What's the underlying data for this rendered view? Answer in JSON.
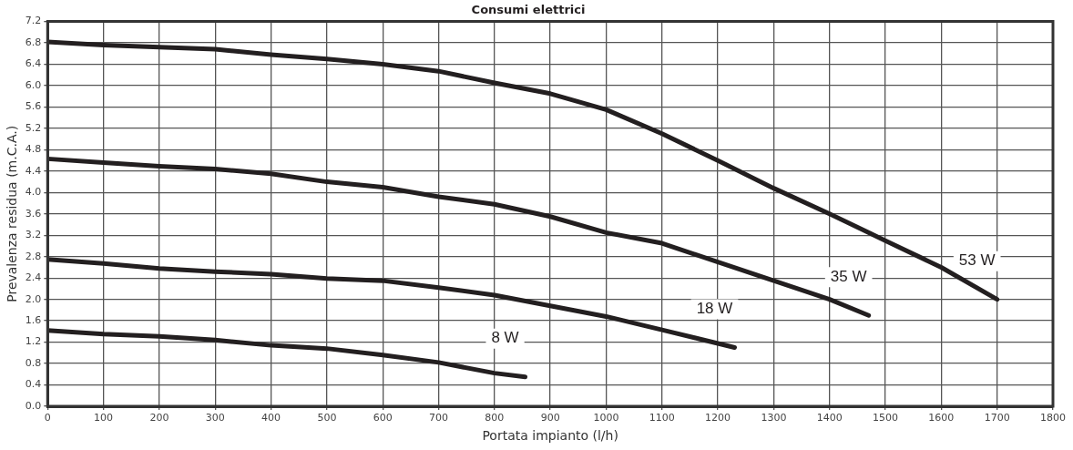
{
  "chart_data": {
    "type": "line",
    "title": "Consumi elettrici",
    "xlabel": "Portata impianto (l/h)",
    "ylabel": "Prevalenza residua (m.C.A.)",
    "xlim": [
      0,
      1800
    ],
    "xticks": [
      0,
      100,
      200,
      300,
      400,
      500,
      600,
      700,
      800,
      900,
      1000,
      1100,
      1200,
      1300,
      1400,
      1500,
      1600,
      1700,
      1800
    ],
    "ylim": [
      0,
      7.2
    ],
    "yticks": [
      {
        "value": 0,
        "label": "0.0"
      },
      {
        "value": 0.4,
        "label": "0.4"
      },
      {
        "value": 0.8,
        "label": "0.8"
      },
      {
        "value": 1.2,
        "label": "1.2"
      },
      {
        "value": 1.6,
        "label": "1.6"
      },
      {
        "value": 2,
        "label": "2.0"
      },
      {
        "value": 2.4,
        "label": "2.4"
      },
      {
        "value": 2.8,
        "label": "2.8"
      },
      {
        "value": 3.2,
        "label": "3.2"
      },
      {
        "value": 3.6,
        "label": "3.6"
      },
      {
        "value": 4,
        "label": "4.0"
      },
      {
        "value": 4.4,
        "label": "4.4"
      },
      {
        "value": 4.8,
        "label": "4.8"
      },
      {
        "value": 5.2,
        "label": "5.2"
      },
      {
        "value": 5.6,
        "label": "5.6"
      },
      {
        "value": 6,
        "label": "6.0"
      },
      {
        "value": 6.4,
        "label": "6.4"
      },
      {
        "value": 6.8,
        "label": "6.8"
      },
      {
        "value": 7.2,
        "label": "7.2"
      }
    ],
    "grid": true,
    "legend": false,
    "marker": "none",
    "line_style": "solid",
    "series": [
      {
        "name": "53 W",
        "color": "#231f20",
        "x": [
          0,
          100,
          200,
          300,
          400,
          500,
          600,
          700,
          800,
          900,
          1000,
          1100,
          1200,
          1300,
          1400,
          1500,
          1600,
          1700
        ],
        "values": [
          6.82,
          6.76,
          6.72,
          6.68,
          6.58,
          6.5,
          6.4,
          6.27,
          6.05,
          5.85,
          5.55,
          5.1,
          4.6,
          4.08,
          3.6,
          3.1,
          2.6,
          2.0
        ]
      },
      {
        "name": "35 W",
        "color": "#231f20",
        "x": [
          0,
          100,
          200,
          300,
          400,
          500,
          600,
          700,
          800,
          900,
          1000,
          1100,
          1200,
          1300,
          1400,
          1470
        ],
        "values": [
          4.63,
          4.56,
          4.49,
          4.44,
          4.35,
          4.2,
          4.1,
          3.92,
          3.78,
          3.55,
          3.25,
          3.05,
          2.7,
          2.35,
          2.0,
          1.7
        ]
      },
      {
        "name": "18 W",
        "color": "#231f20",
        "x": [
          0,
          100,
          200,
          300,
          400,
          500,
          600,
          700,
          800,
          900,
          1000,
          1100,
          1230
        ],
        "values": [
          2.75,
          2.67,
          2.58,
          2.52,
          2.47,
          2.39,
          2.35,
          2.22,
          2.08,
          1.88,
          1.68,
          1.43,
          1.1
        ]
      },
      {
        "name": "8 W",
        "color": "#231f20",
        "x": [
          0,
          100,
          200,
          300,
          400,
          500,
          600,
          700,
          800,
          855
        ],
        "values": [
          1.42,
          1.35,
          1.31,
          1.24,
          1.14,
          1.08,
          0.96,
          0.82,
          0.62,
          0.55
        ]
      }
    ]
  }
}
